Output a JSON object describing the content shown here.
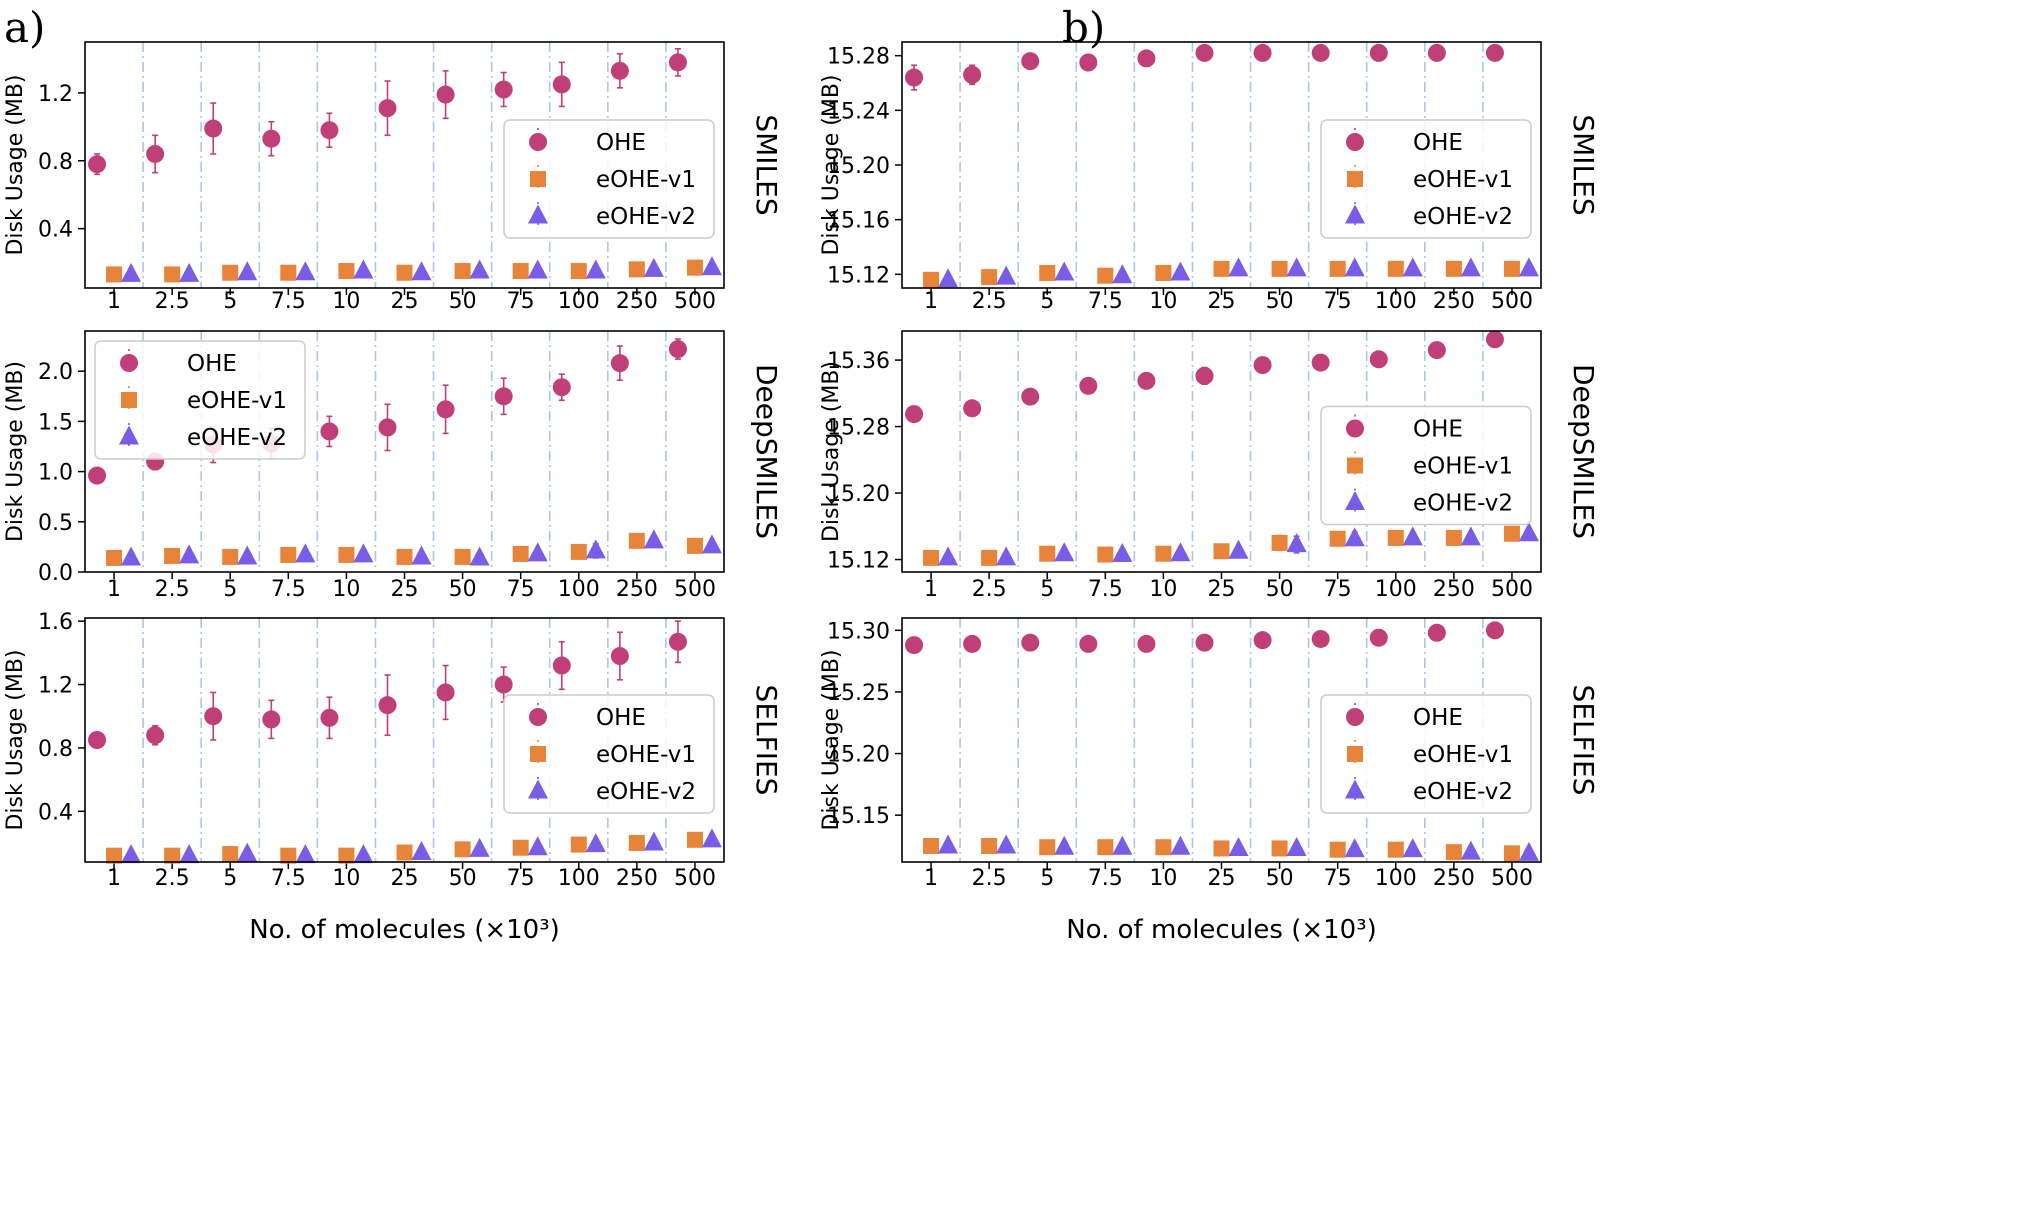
{
  "figure": {
    "panel_a_label": "a)",
    "panel_b_label": "b)",
    "xlabel": "No. of molecules (×10³)",
    "ylabel": "Disk Usage (MB)",
    "colors": {
      "OHE": "#c13f78",
      "eOHE-v1": "#e8843a",
      "eOHE-v2": "#7b5ce6",
      "separator": "#a9c7e6"
    },
    "markers": {
      "OHE": "circle",
      "eOHE-v1": "square",
      "eOHE-v2": "triangle"
    }
  },
  "chart_data": [
    {
      "type": "scatter",
      "title": "",
      "panel": "a",
      "row_label": "SMILES",
      "xlabel": "",
      "ylabel": "Disk Usage (MB)",
      "categories": [
        "1",
        "2.5",
        "5",
        "7.5",
        "10",
        "25",
        "50",
        "75",
        "100",
        "250",
        "500"
      ],
      "ylim": [
        0.05,
        1.5
      ],
      "yticks": [
        0.4,
        0.8,
        1.2
      ],
      "ytick_labels": [
        "0.4",
        "0.8",
        "1.2"
      ],
      "legend": {
        "position": "middle-right",
        "entries": [
          "OHE",
          "eOHE-v1",
          "eOHE-v2"
        ]
      },
      "series": [
        {
          "name": "OHE",
          "values": [
            0.78,
            0.84,
            0.99,
            0.93,
            0.98,
            1.11,
            1.19,
            1.22,
            1.25,
            1.33,
            1.38
          ],
          "errors": [
            0.06,
            0.11,
            0.15,
            0.1,
            0.1,
            0.16,
            0.14,
            0.1,
            0.13,
            0.1,
            0.08
          ]
        },
        {
          "name": "eOHE-v1",
          "values": [
            0.13,
            0.13,
            0.14,
            0.14,
            0.15,
            0.14,
            0.15,
            0.15,
            0.15,
            0.16,
            0.17
          ],
          "errors": [
            0.01,
            0.01,
            0.01,
            0.01,
            0.01,
            0.01,
            0.01,
            0.01,
            0.01,
            0.01,
            0.01
          ]
        },
        {
          "name": "eOHE-v2",
          "values": [
            0.13,
            0.13,
            0.14,
            0.14,
            0.15,
            0.14,
            0.15,
            0.15,
            0.15,
            0.16,
            0.17
          ],
          "errors": [
            0.01,
            0.01,
            0.01,
            0.01,
            0.01,
            0.01,
            0.01,
            0.01,
            0.01,
            0.01,
            0.01
          ]
        }
      ]
    },
    {
      "type": "scatter",
      "title": "",
      "panel": "a",
      "row_label": "DeepSMILES",
      "xlabel": "",
      "ylabel": "Disk Usage (MB)",
      "categories": [
        "1",
        "2.5",
        "5",
        "7.5",
        "10",
        "25",
        "50",
        "75",
        "100",
        "250",
        "500"
      ],
      "ylim": [
        0,
        2.4
      ],
      "yticks": [
        0,
        0.5,
        1.0,
        1.5,
        2.0
      ],
      "ytick_labels": [
        "0.0",
        "0.5",
        "1.0",
        "1.5",
        "2.0"
      ],
      "legend": {
        "position": "top-left",
        "entries": [
          "OHE",
          "eOHE-v1",
          "eOHE-v2"
        ]
      },
      "series": [
        {
          "name": "OHE",
          "values": [
            0.96,
            1.1,
            1.27,
            1.28,
            1.4,
            1.44,
            1.62,
            1.75,
            1.84,
            2.08,
            2.22
          ],
          "errors": [
            0.03,
            0.08,
            0.18,
            0.15,
            0.15,
            0.23,
            0.24,
            0.18,
            0.13,
            0.17,
            0.1
          ]
        },
        {
          "name": "eOHE-v1",
          "values": [
            0.14,
            0.16,
            0.15,
            0.17,
            0.17,
            0.15,
            0.15,
            0.18,
            0.2,
            0.31,
            0.26
          ],
          "errors": [
            0.01,
            0.01,
            0.01,
            0.01,
            0.01,
            0.01,
            0.01,
            0.02,
            0.06,
            0.03,
            0.02
          ]
        },
        {
          "name": "eOHE-v2",
          "values": [
            0.14,
            0.16,
            0.15,
            0.17,
            0.17,
            0.15,
            0.14,
            0.18,
            0.21,
            0.31,
            0.26
          ],
          "errors": [
            0.01,
            0.01,
            0.01,
            0.01,
            0.01,
            0.01,
            0.01,
            0.02,
            0.07,
            0.03,
            0.02
          ]
        }
      ]
    },
    {
      "type": "scatter",
      "title": "",
      "panel": "a",
      "row_label": "SELFIES",
      "xlabel": "No. of molecules (×10³)",
      "ylabel": "Disk Usage (MB)",
      "categories": [
        "1",
        "2.5",
        "5",
        "7.5",
        "10",
        "25",
        "50",
        "75",
        "100",
        "250",
        "500"
      ],
      "ylim": [
        0.08,
        1.62
      ],
      "yticks": [
        0.4,
        0.8,
        1.2,
        1.6
      ],
      "ytick_labels": [
        "0.4",
        "0.8",
        "1.2",
        "1.6"
      ],
      "legend": {
        "position": "middle-right",
        "entries": [
          "OHE",
          "eOHE-v1",
          "eOHE-v2"
        ]
      },
      "series": [
        {
          "name": "OHE",
          "values": [
            0.85,
            0.88,
            1.0,
            0.98,
            0.99,
            1.07,
            1.15,
            1.2,
            1.32,
            1.38,
            1.47
          ],
          "errors": [
            0.02,
            0.06,
            0.15,
            0.12,
            0.13,
            0.19,
            0.17,
            0.11,
            0.15,
            0.15,
            0.13
          ]
        },
        {
          "name": "eOHE-v1",
          "values": [
            0.12,
            0.12,
            0.13,
            0.12,
            0.12,
            0.14,
            0.16,
            0.17,
            0.19,
            0.2,
            0.22
          ],
          "errors": [
            0.01,
            0.01,
            0.01,
            0.01,
            0.01,
            0.01,
            0.01,
            0.01,
            0.01,
            0.01,
            0.01
          ]
        },
        {
          "name": "eOHE-v2",
          "values": [
            0.12,
            0.12,
            0.13,
            0.12,
            0.12,
            0.14,
            0.16,
            0.17,
            0.19,
            0.2,
            0.22
          ],
          "errors": [
            0.01,
            0.01,
            0.01,
            0.01,
            0.01,
            0.01,
            0.01,
            0.01,
            0.01,
            0.01,
            0.01
          ]
        }
      ]
    },
    {
      "type": "scatter",
      "title": "",
      "panel": "b",
      "row_label": "SMILES",
      "xlabel": "",
      "ylabel": "Disk Usage (MB)",
      "categories": [
        "1",
        "2.5",
        "5",
        "7.5",
        "10",
        "25",
        "50",
        "75",
        "100",
        "250",
        "500"
      ],
      "ylim": [
        15.11,
        15.29
      ],
      "yticks": [
        15.12,
        15.16,
        15.2,
        15.24,
        15.28
      ],
      "ytick_labels": [
        "15.12",
        "15.16",
        "15.20",
        "15.24",
        "15.28"
      ],
      "legend": {
        "position": "middle-right",
        "entries": [
          "OHE",
          "eOHE-v1",
          "eOHE-v2"
        ]
      },
      "series": [
        {
          "name": "OHE",
          "values": [
            15.264,
            15.266,
            15.276,
            15.275,
            15.278,
            15.282,
            15.282,
            15.282,
            15.282,
            15.282,
            15.282
          ],
          "errors": [
            0.009,
            0.007,
            0.005,
            0.005,
            0.003,
            0.001,
            0.001,
            0.001,
            0.001,
            0.001,
            0.001
          ]
        },
        {
          "name": "eOHE-v1",
          "values": [
            15.116,
            15.118,
            15.121,
            15.119,
            15.121,
            15.124,
            15.124,
            15.124,
            15.124,
            15.124,
            15.124
          ],
          "errors": [
            0.001,
            0.001,
            0.002,
            0.002,
            0.002,
            0.001,
            0.001,
            0.001,
            0.001,
            0.001,
            0.001
          ]
        },
        {
          "name": "eOHE-v2",
          "values": [
            15.116,
            15.118,
            15.121,
            15.119,
            15.121,
            15.124,
            15.124,
            15.124,
            15.124,
            15.124,
            15.124
          ],
          "errors": [
            0.001,
            0.001,
            0.002,
            0.002,
            0.002,
            0.001,
            0.001,
            0.001,
            0.001,
            0.001,
            0.001
          ]
        }
      ]
    },
    {
      "type": "scatter",
      "title": "",
      "panel": "b",
      "row_label": "DeepSMILES",
      "xlabel": "",
      "ylabel": "Disk Usage (MB)",
      "categories": [
        "1",
        "2.5",
        "5",
        "7.5",
        "10",
        "25",
        "50",
        "75",
        "100",
        "250",
        "500"
      ],
      "ylim": [
        15.105,
        15.395
      ],
      "yticks": [
        15.12,
        15.2,
        15.28,
        15.36
      ],
      "ytick_labels": [
        "15.12",
        "15.20",
        "15.28",
        "15.36"
      ],
      "legend": {
        "position": "middle-right",
        "entries": [
          "OHE",
          "eOHE-v1",
          "eOHE-v2"
        ]
      },
      "series": [
        {
          "name": "OHE",
          "values": [
            15.295,
            15.302,
            15.316,
            15.329,
            15.335,
            15.341,
            15.354,
            15.357,
            15.361,
            15.372,
            15.385
          ],
          "errors": [
            0.008,
            0.005,
            0.006,
            0.005,
            0.008,
            0.01,
            0.008,
            0.008,
            0.006,
            0.002,
            0.002
          ]
        },
        {
          "name": "eOHE-v1",
          "values": [
            15.122,
            15.122,
            15.127,
            15.126,
            15.127,
            15.13,
            15.14,
            15.145,
            15.146,
            15.146,
            15.151
          ],
          "errors": [
            0.001,
            0.002,
            0.002,
            0.002,
            0.002,
            0.006,
            0.009,
            0.008,
            0.005,
            0.002,
            0.001
          ]
        },
        {
          "name": "eOHE-v2",
          "values": [
            15.122,
            15.122,
            15.127,
            15.126,
            15.127,
            15.13,
            15.138,
            15.145,
            15.146,
            15.146,
            15.151
          ],
          "errors": [
            0.001,
            0.004,
            0.002,
            0.002,
            0.002,
            0.006,
            0.01,
            0.008,
            0.005,
            0.002,
            0.001
          ]
        }
      ]
    },
    {
      "type": "scatter",
      "title": "",
      "panel": "b",
      "row_label": "SELFIES",
      "xlabel": "No. of molecules (×10³)",
      "ylabel": "Disk Usage (MB)",
      "categories": [
        "1",
        "2.5",
        "5",
        "7.5",
        "10",
        "25",
        "50",
        "75",
        "100",
        "250",
        "500"
      ],
      "ylim": [
        15.112,
        15.31
      ],
      "yticks": [
        15.15,
        15.2,
        15.25,
        15.3
      ],
      "ytick_labels": [
        "15.15",
        "15.20",
        "15.25",
        "15.30"
      ],
      "legend": {
        "position": "middle-right",
        "entries": [
          "OHE",
          "eOHE-v1",
          "eOHE-v2"
        ]
      },
      "series": [
        {
          "name": "OHE",
          "values": [
            15.288,
            15.289,
            15.29,
            15.289,
            15.289,
            15.29,
            15.292,
            15.293,
            15.294,
            15.298,
            15.3
          ],
          "errors": [
            0.001,
            0.001,
            0.001,
            0.001,
            0.001,
            0.001,
            0.001,
            0.001,
            0.001,
            0.001,
            0.001
          ]
        },
        {
          "name": "eOHE-v1",
          "values": [
            15.125,
            15.125,
            15.124,
            15.124,
            15.124,
            15.123,
            15.123,
            15.122,
            15.122,
            15.12,
            15.119
          ],
          "errors": [
            0.001,
            0.001,
            0.001,
            0.001,
            0.001,
            0.001,
            0.001,
            0.001,
            0.001,
            0.001,
            0.001
          ]
        },
        {
          "name": "eOHE-v2",
          "values": [
            15.125,
            15.125,
            15.124,
            15.124,
            15.124,
            15.123,
            15.123,
            15.122,
            15.122,
            15.12,
            15.119
          ],
          "errors": [
            0.001,
            0.001,
            0.001,
            0.001,
            0.001,
            0.001,
            0.001,
            0.001,
            0.001,
            0.001,
            0.001
          ]
        }
      ]
    }
  ]
}
